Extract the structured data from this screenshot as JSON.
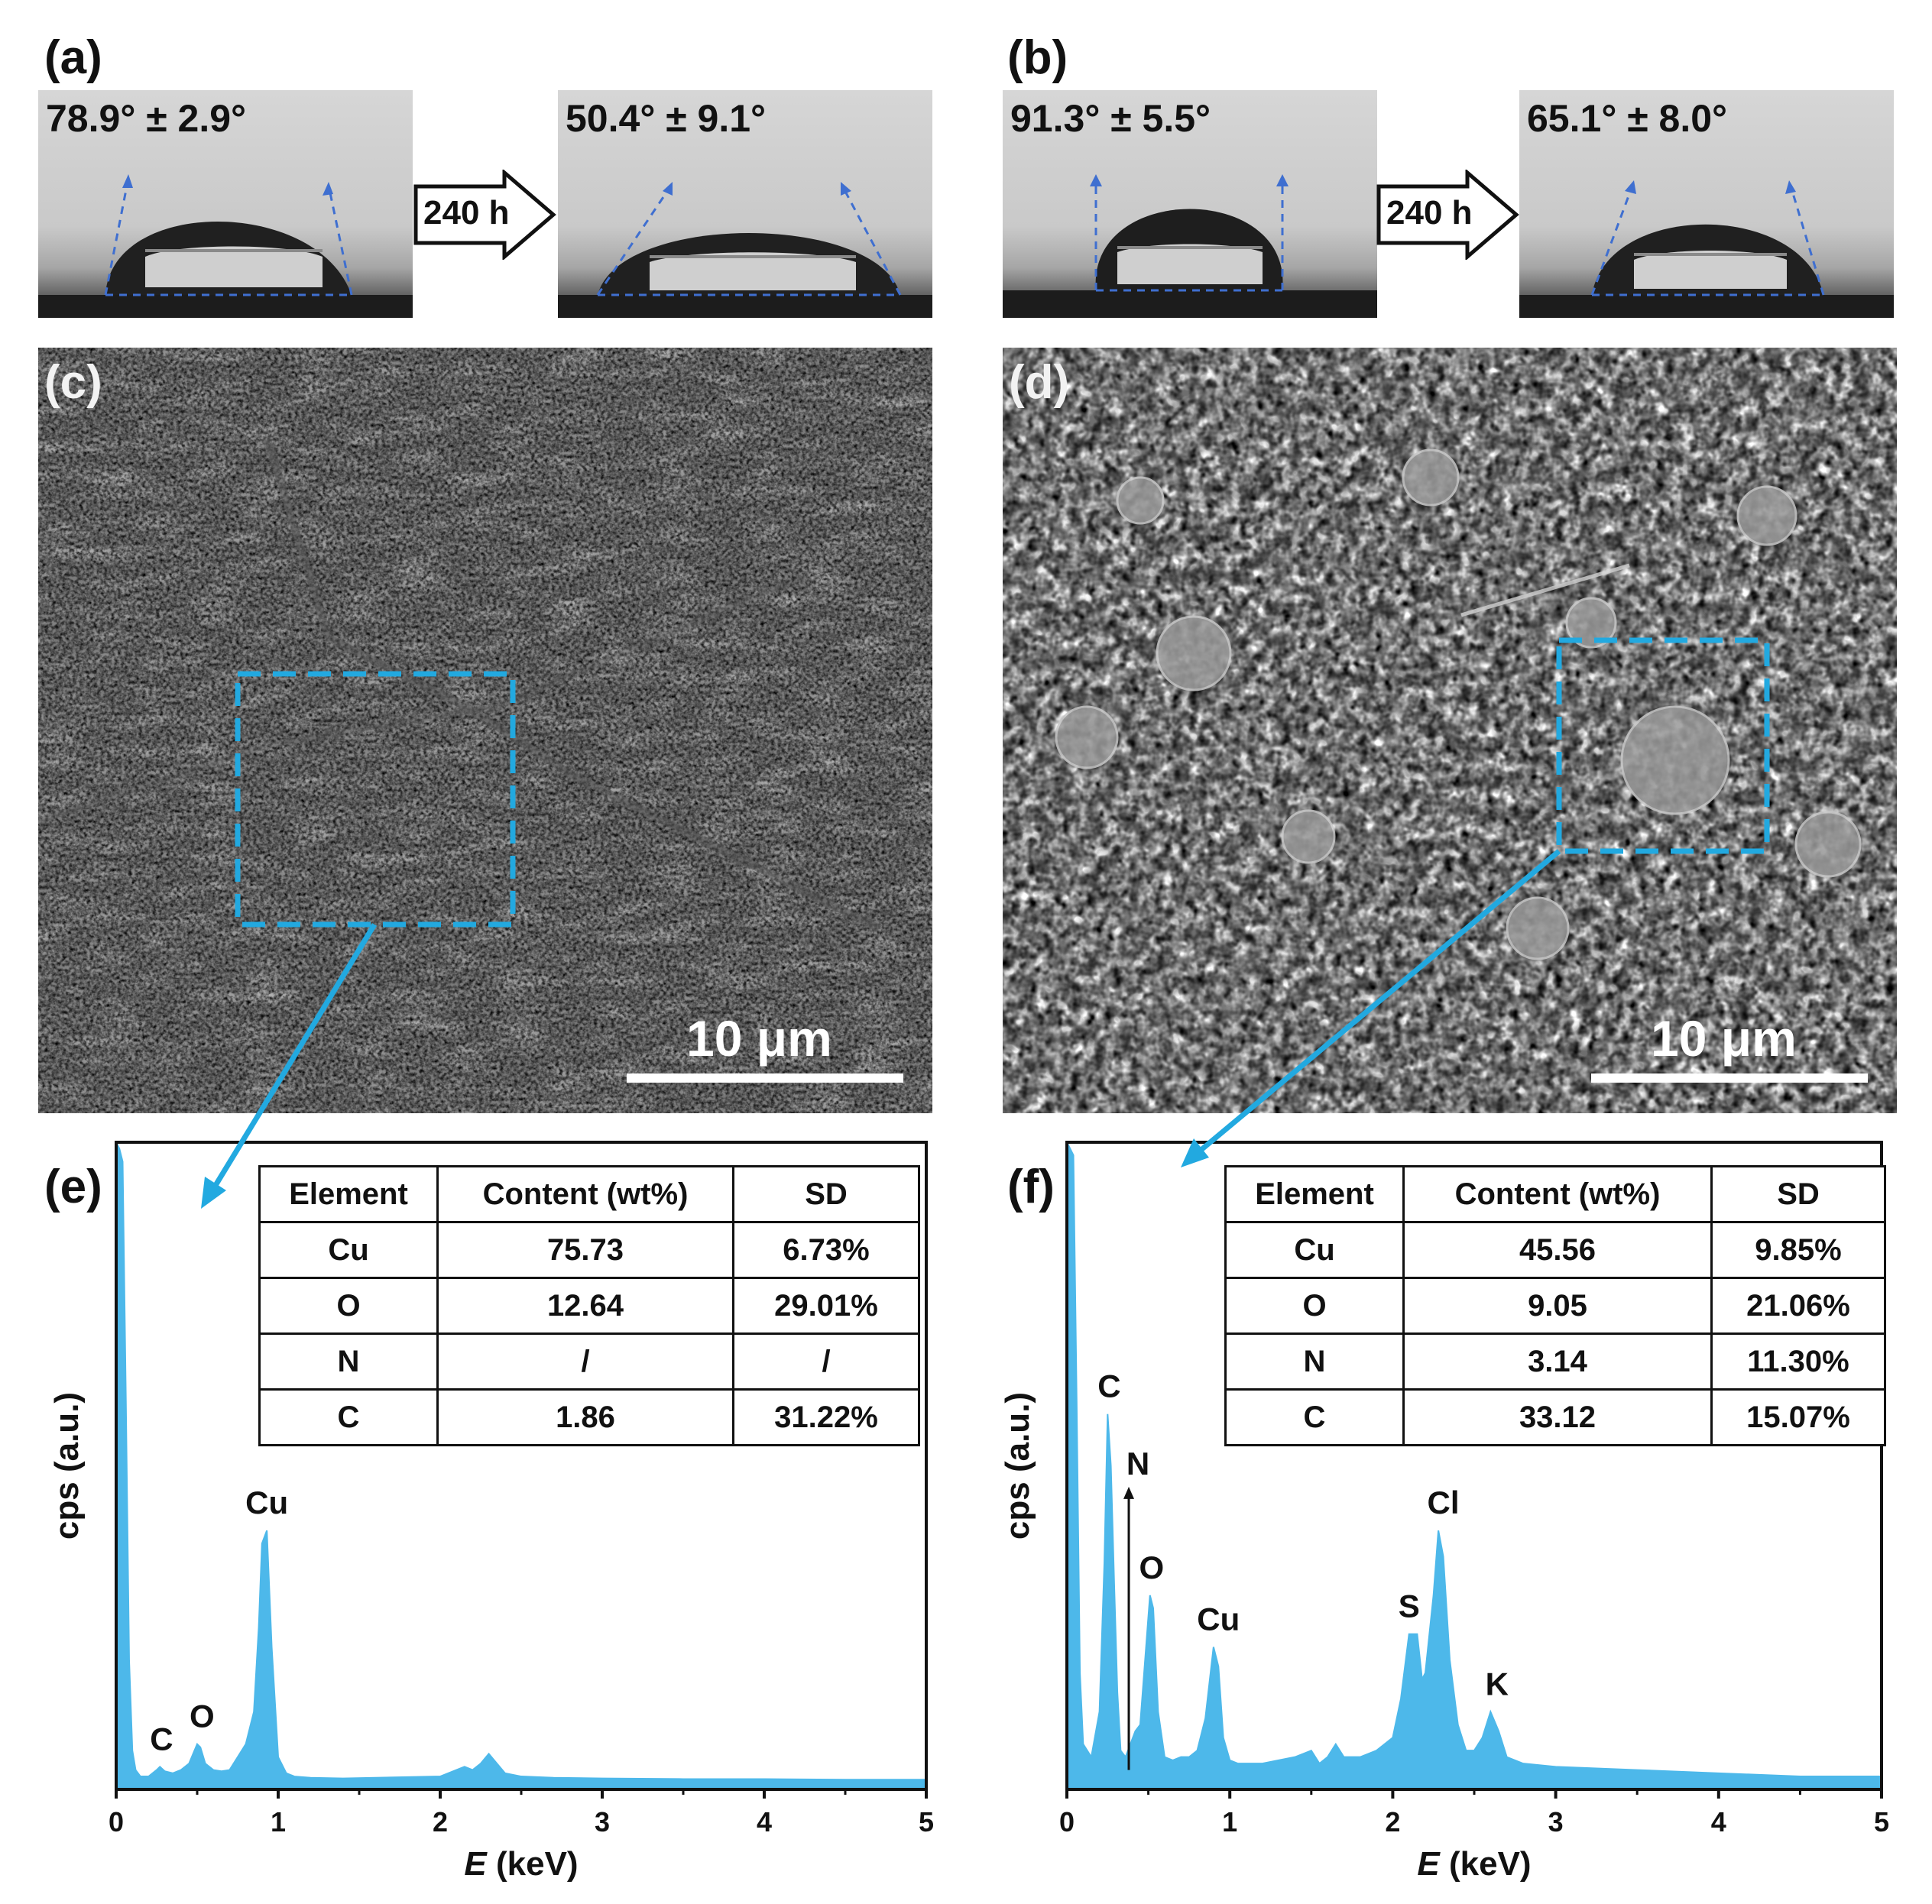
{
  "panels": {
    "a": {
      "label": "(a)",
      "before_angle": "78.9° ± 2.9°",
      "after_angle": "50.4° ± 9.1°",
      "arrow_text": "240 h"
    },
    "b": {
      "label": "(b)",
      "before_angle": "91.3° ± 5.5°",
      "after_angle": "65.1° ± 8.0°",
      "arrow_text": "240 h"
    },
    "c": {
      "label": "(c)",
      "scale_bar": "10 μm"
    },
    "d": {
      "label": "(d)",
      "scale_bar": "10 μm"
    },
    "e": {
      "label": "(e)"
    },
    "f": {
      "label": "(f)"
    }
  },
  "colors": {
    "spectrum_fill": "#4db8ea",
    "highlight_box": "#22a9e0",
    "angle_guides": "#3f6fd0",
    "sem_left_base": "#7a7a7a",
    "sem_right_base": "#6e6e6e"
  },
  "chart_data": [
    {
      "panel": "e",
      "type": "area",
      "xlabel_italic": "E",
      "xlabel_rest": " (keV)",
      "ylabel": "cps (a.u.)",
      "xlim": [
        0,
        5
      ],
      "x_ticks": [
        "0",
        "1",
        "2",
        "3",
        "4",
        "5"
      ],
      "ylim": [
        0,
        100
      ],
      "x": [
        0.0,
        0.02,
        0.04,
        0.06,
        0.08,
        0.1,
        0.12,
        0.15,
        0.2,
        0.25,
        0.27,
        0.3,
        0.35,
        0.4,
        0.45,
        0.5,
        0.52,
        0.55,
        0.6,
        0.65,
        0.7,
        0.75,
        0.8,
        0.85,
        0.88,
        0.9,
        0.93,
        0.96,
        1.0,
        1.05,
        1.1,
        1.2,
        1.4,
        1.6,
        1.8,
        2.0,
        2.1,
        2.15,
        2.2,
        2.25,
        2.3,
        2.35,
        2.4,
        2.5,
        2.7,
        3.0,
        3.5,
        4.0,
        4.5,
        5.0
      ],
      "values": [
        100,
        99,
        97,
        60,
        20,
        6,
        3,
        2,
        2,
        3,
        3.5,
        2.8,
        2.5,
        3,
        4,
        7,
        6.5,
        4,
        3,
        2.8,
        3,
        5,
        7,
        12,
        25,
        38,
        40,
        22,
        5,
        2.5,
        2,
        1.8,
        1.7,
        1.8,
        1.9,
        2,
        3,
        3.5,
        3,
        4,
        5.5,
        4,
        2.5,
        2,
        1.8,
        1.7,
        1.6,
        1.6,
        1.5,
        1.5
      ],
      "peak_labels": [
        {
          "text": "C",
          "x": 0.28,
          "y": 3.5
        },
        {
          "text": "O",
          "x": 0.53,
          "y": 7
        },
        {
          "text": "Cu",
          "x": 0.93,
          "y": 40
        }
      ],
      "table": {
        "headers": [
          "Element",
          "Content (wt%)",
          "SD"
        ],
        "rows": [
          [
            "Cu",
            "75.73",
            "6.73%"
          ],
          [
            "O",
            "12.64",
            "29.01%"
          ],
          [
            "N",
            "/",
            "/"
          ],
          [
            "C",
            "1.86",
            "31.22%"
          ]
        ]
      }
    },
    {
      "panel": "f",
      "type": "area",
      "xlabel_italic": "E",
      "xlabel_rest": " (keV)",
      "ylabel": "cps (a.u.)",
      "xlim": [
        0,
        5
      ],
      "x_ticks": [
        "0",
        "1",
        "2",
        "3",
        "4",
        "5"
      ],
      "ylim": [
        0,
        100
      ],
      "x": [
        0.0,
        0.02,
        0.04,
        0.06,
        0.08,
        0.1,
        0.15,
        0.2,
        0.23,
        0.25,
        0.27,
        0.29,
        0.31,
        0.33,
        0.36,
        0.39,
        0.42,
        0.45,
        0.48,
        0.51,
        0.53,
        0.56,
        0.6,
        0.65,
        0.7,
        0.75,
        0.8,
        0.85,
        0.9,
        0.93,
        0.96,
        1.0,
        1.05,
        1.2,
        1.4,
        1.5,
        1.55,
        1.6,
        1.65,
        1.7,
        1.8,
        1.9,
        2.0,
        2.05,
        2.1,
        2.15,
        2.18,
        2.2,
        2.25,
        2.28,
        2.31,
        2.35,
        2.4,
        2.45,
        2.5,
        2.55,
        2.6,
        2.65,
        2.7,
        2.8,
        3.0,
        3.5,
        4.0,
        4.5,
        5.0
      ],
      "values": [
        100,
        99,
        98,
        60,
        18,
        7,
        5,
        12,
        35,
        58,
        50,
        32,
        15,
        6,
        5,
        7,
        9,
        10,
        20,
        30,
        28,
        12,
        5,
        4.5,
        5,
        5,
        6,
        11,
        22,
        19,
        8,
        4.5,
        4,
        4,
        5,
        6,
        4,
        5,
        7,
        5,
        5,
        6,
        8,
        14,
        24,
        24,
        17,
        18,
        30,
        40,
        36,
        20,
        10,
        6,
        6,
        8,
        12,
        9,
        5,
        4,
        3.5,
        3,
        2.5,
        2,
        2
      ],
      "peak_labels": [
        {
          "text": "C",
          "x": 0.26,
          "y": 58
        },
        {
          "text": "N",
          "x": 0.43,
          "y": 47
        },
        {
          "text": "O",
          "x": 0.52,
          "y": 30
        },
        {
          "text": "Cu",
          "x": 0.93,
          "y": 22
        },
        {
          "text": "S",
          "x": 2.1,
          "y": 24
        },
        {
          "text": "Cl",
          "x": 2.31,
          "y": 40
        },
        {
          "text": "K",
          "x": 2.64,
          "y": 12
        }
      ],
      "table": {
        "headers": [
          "Element",
          "Content (wt%)",
          "SD"
        ],
        "rows": [
          [
            "Cu",
            "45.56",
            "9.85%"
          ],
          [
            "O",
            "9.05",
            "21.06%"
          ],
          [
            "N",
            "3.14",
            "11.30%"
          ],
          [
            "C",
            "33.12",
            "15.07%"
          ]
        ]
      }
    }
  ]
}
